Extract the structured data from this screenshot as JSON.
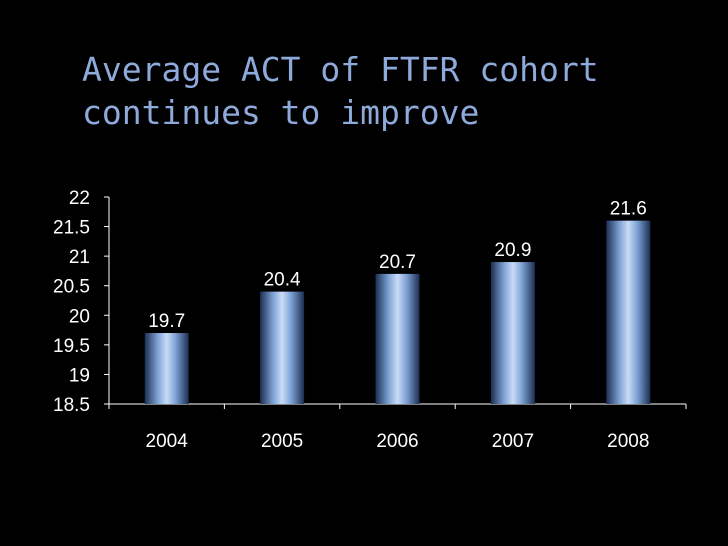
{
  "slide": {
    "title_line1": "Average ACT of FTFR cohort",
    "title_line2": "continues to improve"
  },
  "chart_data": {
    "type": "bar",
    "categories": [
      "2004",
      "2005",
      "2006",
      "2007",
      "2008"
    ],
    "values": [
      19.7,
      20.4,
      20.7,
      20.9,
      21.6
    ],
    "value_labels": [
      "19.7",
      "20.4",
      "20.7",
      "20.9",
      "21.6"
    ],
    "ylim": [
      18.5,
      22
    ],
    "yticks": [
      "18.5",
      "19",
      "19.5",
      "20",
      "20.5",
      "21",
      "21.5",
      "22"
    ],
    "ytick_values": [
      18.5,
      19,
      19.5,
      20,
      20.5,
      21,
      21.5,
      22
    ],
    "grid": false,
    "legend": "none",
    "colors": {
      "bar_light": "#c9dcf5",
      "bar_mid": "#7fa3d6",
      "bar_dark": "#1c2f52",
      "label_bg": "#000000",
      "axis": "#ffffff",
      "title": "#8eaadb"
    }
  }
}
